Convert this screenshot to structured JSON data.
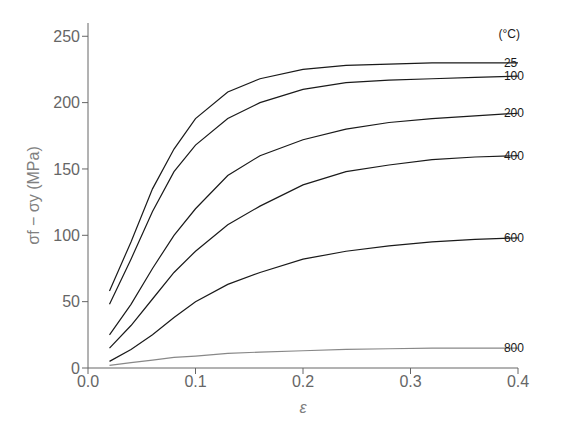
{
  "chart_data": {
    "type": "line",
    "title": "",
    "xlabel": "ε",
    "ylabel": "σf − σy (MPa)",
    "xlim": [
      0.0,
      0.4
    ],
    "ylim": [
      0,
      260
    ],
    "xticks": [
      {
        "value": 0.0,
        "label": "0.0"
      },
      {
        "value": 0.1,
        "label": "0.1"
      },
      {
        "value": 0.2,
        "label": "0.2"
      },
      {
        "value": 0.3,
        "label": "0.3"
      },
      {
        "value": 0.4,
        "label": "0.4"
      }
    ],
    "yticks": [
      0,
      50,
      100,
      150,
      200,
      250
    ],
    "grid": false,
    "x": [
      0.02,
      0.04,
      0.06,
      0.08,
      0.1,
      0.13,
      0.16,
      0.2,
      0.24,
      0.28,
      0.32,
      0.36,
      0.4
    ],
    "series": [
      {
        "name": "25",
        "color": "#1a1a1a",
        "values": [
          58,
          95,
          135,
          165,
          188,
          208,
          218,
          225,
          228,
          229,
          230,
          230,
          230
        ]
      },
      {
        "name": "100",
        "color": "#1a1a1a",
        "values": [
          48,
          82,
          118,
          148,
          168,
          188,
          200,
          210,
          215,
          217,
          218,
          219,
          220
        ]
      },
      {
        "name": "200",
        "color": "#1a1a1a",
        "values": [
          25,
          48,
          75,
          100,
          120,
          145,
          160,
          172,
          180,
          185,
          188,
          190,
          192
        ]
      },
      {
        "name": "400",
        "color": "#1a1a1a",
        "values": [
          15,
          32,
          52,
          72,
          88,
          108,
          122,
          138,
          148,
          153,
          157,
          159,
          160
        ]
      },
      {
        "name": "600",
        "color": "#1a1a1a",
        "values": [
          5,
          14,
          25,
          38,
          50,
          63,
          72,
          82,
          88,
          92,
          95,
          97,
          98
        ]
      },
      {
        "name": "800",
        "color": "#888888",
        "values": [
          2,
          4,
          6,
          8,
          9,
          11,
          12,
          13,
          14,
          14.5,
          15,
          15,
          15
        ]
      }
    ],
    "annotations": [
      {
        "text": "(°C)",
        "x": 0.38,
        "y": 252
      },
      {
        "text": "25",
        "x": 0.385,
        "y": 230
      },
      {
        "text": "100",
        "x": 0.385,
        "y": 220
      },
      {
        "text": "200",
        "x": 0.385,
        "y": 192
      },
      {
        "text": "400",
        "x": 0.385,
        "y": 160
      },
      {
        "text": "600",
        "x": 0.385,
        "y": 98
      },
      {
        "text": "800",
        "x": 0.385,
        "y": 15
      }
    ]
  }
}
